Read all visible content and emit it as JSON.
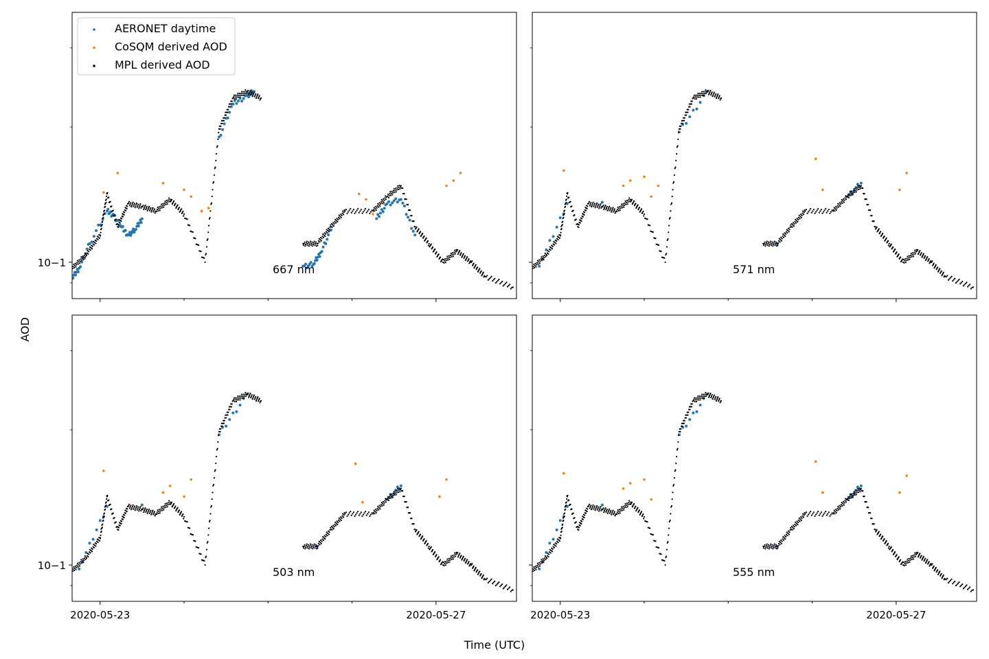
{
  "figure": {
    "ylabel": "AOD",
    "xlabel": "Time (UTC)",
    "colors": {
      "aeronet": "#1f77b4",
      "cosqm": "#ff7f0e",
      "mpl": "#000000"
    },
    "legend": {
      "placement": "upper-left of top-left panel",
      "entries": [
        "AERONET daytime",
        "CoSQM derived AOD",
        "MPL derived AOD"
      ]
    }
  },
  "chart_data": [
    {
      "type": "scatter",
      "panel": "top-left",
      "annotation": "667 nm",
      "yscale": "log",
      "xlim": [
        "2020-05-22 16:00",
        "2020-05-27 23:00"
      ],
      "ylim": [
        0.083,
        0.36
      ],
      "y_tick_label": "10−1",
      "x_tick_labels": [],
      "series": [
        {
          "name": "AERONET daytime",
          "points": [
            [
              "2020-05-22 16:00",
              0.092
            ],
            [
              "2020-05-22 18:00",
              0.097
            ],
            [
              "2020-05-22 21:00",
              0.11
            ],
            [
              "2020-05-23 02:00",
              0.13
            ],
            [
              "2020-05-23 04:00",
              0.127
            ],
            [
              "2020-05-23 06:00",
              0.12
            ],
            [
              "2020-05-23 08:00",
              0.115
            ],
            [
              "2020-05-23 10:00",
              0.118
            ],
            [
              "2020-05-23 12:00",
              0.125
            ],
            [
              "2020-05-24 10:00",
              0.19
            ],
            [
              "2020-05-24 14:00",
              0.225
            ],
            [
              "2020-05-24 18:00",
              0.235
            ],
            [
              "2020-05-24 20:00",
              0.24
            ],
            [
              "2020-05-25 10:00",
              0.098
            ],
            [
              "2020-05-25 13:00",
              0.099
            ],
            [
              "2020-05-25 15:00",
              0.105
            ],
            [
              "2020-05-25 18:00",
              0.118
            ],
            [
              "2020-05-26 07:00",
              0.125
            ],
            [
              "2020-05-26 10:00",
              0.135
            ],
            [
              "2020-05-26 14:00",
              0.138
            ],
            [
              "2020-05-26 18:00",
              0.115
            ]
          ]
        },
        {
          "name": "CoSQM derived AOD",
          "points": [
            [
              "2020-05-23 01:00",
              0.143
            ],
            [
              "2020-05-23 05:00",
              0.158
            ],
            [
              "2020-05-23 18:00",
              0.15
            ],
            [
              "2020-05-24 00:00",
              0.145
            ],
            [
              "2020-05-24 02:00",
              0.14
            ],
            [
              "2020-05-24 05:00",
              0.13
            ],
            [
              "2020-05-24 07:00",
              0.132
            ],
            [
              "2020-05-26 02:00",
              0.142
            ],
            [
              "2020-05-26 04:00",
              0.138
            ],
            [
              "2020-05-26 06:00",
              0.128
            ],
            [
              "2020-05-26 09:00",
              0.135
            ],
            [
              "2020-05-27 03:00",
              0.148
            ],
            [
              "2020-05-27 05:00",
              0.152
            ],
            [
              "2020-05-27 07:00",
              0.158
            ]
          ]
        },
        {
          "name": "MPL derived AOD",
          "points": [
            [
              "2020-05-22 16:00",
              0.097
            ],
            [
              "2020-05-22 20:00",
              0.104
            ],
            [
              "2020-05-23 00:00",
              0.115
            ],
            [
              "2020-05-23 02:00",
              0.142
            ],
            [
              "2020-05-23 05:00",
              0.12
            ],
            [
              "2020-05-23 08:00",
              0.135
            ],
            [
              "2020-05-23 12:00",
              0.133
            ],
            [
              "2020-05-23 16:00",
              0.13
            ],
            [
              "2020-05-23 20:00",
              0.138
            ],
            [
              "2020-05-24 00:00",
              0.128
            ],
            [
              "2020-05-24 06:00",
              0.1
            ],
            [
              "2020-05-24 10:00",
              0.198
            ],
            [
              "2020-05-24 14:00",
              0.232
            ],
            [
              "2020-05-24 18:00",
              0.24
            ],
            [
              "2020-05-24 22:00",
              0.232
            ],
            [
              "2020-05-25 10:00",
              0.11
            ],
            [
              "2020-05-25 14:00",
              0.11
            ],
            [
              "2020-05-25 18:00",
              0.12
            ],
            [
              "2020-05-25 22:00",
              0.13
            ],
            [
              "2020-05-26 06:00",
              0.13
            ],
            [
              "2020-05-26 10:00",
              0.14
            ],
            [
              "2020-05-26 14:00",
              0.148
            ],
            [
              "2020-05-26 18:00",
              0.12
            ],
            [
              "2020-05-26 22:00",
              0.11
            ],
            [
              "2020-05-27 02:00",
              0.1
            ],
            [
              "2020-05-27 06:00",
              0.106
            ],
            [
              "2020-05-27 10:00",
              0.1
            ],
            [
              "2020-05-27 14:00",
              0.093
            ],
            [
              "2020-05-27 22:00",
              0.088
            ]
          ]
        }
      ]
    },
    {
      "type": "scatter",
      "panel": "top-right",
      "annotation": "571 nm",
      "yscale": "log",
      "xlim": [
        "2020-05-22 16:00",
        "2020-05-27 23:00"
      ],
      "ylim": [
        0.083,
        0.36
      ],
      "y_tick_label": "",
      "x_tick_labels": [],
      "series": [
        {
          "name": "AERONET daytime",
          "points": [
            [
              "2020-05-22 18:00",
              0.098
            ],
            [
              "2020-05-23 02:00",
              0.135
            ],
            [
              "2020-05-23 12:00",
              0.136
            ],
            [
              "2020-05-24 10:00",
              0.195
            ],
            [
              "2020-05-24 18:00",
              0.24
            ],
            [
              "2020-05-25 14:00",
              0.11
            ],
            [
              "2020-05-26 10:00",
              0.14
            ],
            [
              "2020-05-26 14:00",
              0.15
            ]
          ]
        },
        {
          "name": "CoSQM derived AOD",
          "points": [
            [
              "2020-05-23 01:00",
              0.16
            ],
            [
              "2020-05-23 18:00",
              0.148
            ],
            [
              "2020-05-23 20:00",
              0.152
            ],
            [
              "2020-05-24 00:00",
              0.155
            ],
            [
              "2020-05-24 02:00",
              0.14
            ],
            [
              "2020-05-24 04:00",
              0.148
            ],
            [
              "2020-05-26 01:00",
              0.17
            ],
            [
              "2020-05-26 03:00",
              0.145
            ],
            [
              "2020-05-27 01:00",
              0.145
            ],
            [
              "2020-05-27 03:00",
              0.158
            ]
          ]
        },
        {
          "name": "MPL derived AOD",
          "points": [
            [
              "2020-05-22 16:00",
              0.097
            ],
            [
              "2020-05-22 20:00",
              0.104
            ],
            [
              "2020-05-23 00:00",
              0.115
            ],
            [
              "2020-05-23 02:00",
              0.142
            ],
            [
              "2020-05-23 05:00",
              0.12
            ],
            [
              "2020-05-23 08:00",
              0.135
            ],
            [
              "2020-05-23 12:00",
              0.133
            ],
            [
              "2020-05-23 16:00",
              0.13
            ],
            [
              "2020-05-23 20:00",
              0.138
            ],
            [
              "2020-05-24 00:00",
              0.128
            ],
            [
              "2020-05-24 06:00",
              0.1
            ],
            [
              "2020-05-24 10:00",
              0.198
            ],
            [
              "2020-05-24 14:00",
              0.232
            ],
            [
              "2020-05-24 18:00",
              0.24
            ],
            [
              "2020-05-24 22:00",
              0.232
            ],
            [
              "2020-05-25 10:00",
              0.11
            ],
            [
              "2020-05-25 14:00",
              0.11
            ],
            [
              "2020-05-25 18:00",
              0.12
            ],
            [
              "2020-05-25 22:00",
              0.13
            ],
            [
              "2020-05-26 06:00",
              0.13
            ],
            [
              "2020-05-26 10:00",
              0.14
            ],
            [
              "2020-05-26 14:00",
              0.148
            ],
            [
              "2020-05-26 18:00",
              0.12
            ],
            [
              "2020-05-26 22:00",
              0.11
            ],
            [
              "2020-05-27 02:00",
              0.1
            ],
            [
              "2020-05-27 06:00",
              0.106
            ],
            [
              "2020-05-27 10:00",
              0.1
            ],
            [
              "2020-05-27 14:00",
              0.093
            ],
            [
              "2020-05-27 22:00",
              0.088
            ]
          ]
        }
      ]
    },
    {
      "type": "scatter",
      "panel": "bottom-left",
      "annotation": "503 nm",
      "yscale": "log",
      "xlim": [
        "2020-05-22 16:00",
        "2020-05-27 23:00"
      ],
      "ylim": [
        0.083,
        0.36
      ],
      "y_tick_label": "10−1",
      "x_tick_labels": [
        "2020-05-23",
        "2020-05-27"
      ],
      "series": [
        {
          "name": "AERONET daytime",
          "points": [
            [
              "2020-05-22 18:00",
              0.098
            ],
            [
              "2020-05-23 02:00",
              0.135
            ],
            [
              "2020-05-23 12:00",
              0.136
            ],
            [
              "2020-05-24 10:00",
              0.195
            ],
            [
              "2020-05-24 18:00",
              0.24
            ],
            [
              "2020-05-25 14:00",
              0.11
            ],
            [
              "2020-05-26 10:00",
              0.14
            ],
            [
              "2020-05-26 14:00",
              0.15
            ]
          ]
        },
        {
          "name": "CoSQM derived AOD",
          "points": [
            [
              "2020-05-23 01:00",
              0.162
            ],
            [
              "2020-05-23 18:00",
              0.145
            ],
            [
              "2020-05-23 20:00",
              0.15
            ],
            [
              "2020-05-24 00:00",
              0.142
            ],
            [
              "2020-05-24 02:00",
              0.155
            ],
            [
              "2020-05-26 01:00",
              0.168
            ],
            [
              "2020-05-26 03:00",
              0.138
            ],
            [
              "2020-05-27 01:00",
              0.142
            ],
            [
              "2020-05-27 03:00",
              0.155
            ]
          ]
        },
        {
          "name": "MPL derived AOD",
          "points": [
            [
              "2020-05-22 16:00",
              0.097
            ],
            [
              "2020-05-22 20:00",
              0.104
            ],
            [
              "2020-05-23 00:00",
              0.115
            ],
            [
              "2020-05-23 02:00",
              0.142
            ],
            [
              "2020-05-23 05:00",
              0.12
            ],
            [
              "2020-05-23 08:00",
              0.135
            ],
            [
              "2020-05-23 12:00",
              0.133
            ],
            [
              "2020-05-23 16:00",
              0.13
            ],
            [
              "2020-05-23 20:00",
              0.138
            ],
            [
              "2020-05-24 00:00",
              0.128
            ],
            [
              "2020-05-24 06:00",
              0.1
            ],
            [
              "2020-05-24 10:00",
              0.198
            ],
            [
              "2020-05-24 14:00",
              0.232
            ],
            [
              "2020-05-24 18:00",
              0.24
            ],
            [
              "2020-05-24 22:00",
              0.232
            ],
            [
              "2020-05-25 10:00",
              0.11
            ],
            [
              "2020-05-25 14:00",
              0.11
            ],
            [
              "2020-05-25 18:00",
              0.12
            ],
            [
              "2020-05-25 22:00",
              0.13
            ],
            [
              "2020-05-26 06:00",
              0.13
            ],
            [
              "2020-05-26 10:00",
              0.14
            ],
            [
              "2020-05-26 14:00",
              0.148
            ],
            [
              "2020-05-26 18:00",
              0.12
            ],
            [
              "2020-05-26 22:00",
              0.11
            ],
            [
              "2020-05-27 02:00",
              0.1
            ],
            [
              "2020-05-27 06:00",
              0.106
            ],
            [
              "2020-05-27 10:00",
              0.1
            ],
            [
              "2020-05-27 14:00",
              0.093
            ],
            [
              "2020-05-27 22:00",
              0.088
            ]
          ]
        }
      ]
    },
    {
      "type": "scatter",
      "panel": "bottom-right",
      "annotation": "555 nm",
      "yscale": "log",
      "xlim": [
        "2020-05-22 16:00",
        "2020-05-27 23:00"
      ],
      "ylim": [
        0.083,
        0.36
      ],
      "y_tick_label": "",
      "x_tick_labels": [
        "2020-05-23",
        "2020-05-27"
      ],
      "series": [
        {
          "name": "AERONET daytime",
          "points": [
            [
              "2020-05-22 18:00",
              0.098
            ],
            [
              "2020-05-23 02:00",
              0.135
            ],
            [
              "2020-05-23 12:00",
              0.136
            ],
            [
              "2020-05-24 10:00",
              0.195
            ],
            [
              "2020-05-24 18:00",
              0.24
            ],
            [
              "2020-05-25 14:00",
              0.11
            ],
            [
              "2020-05-26 10:00",
              0.14
            ],
            [
              "2020-05-26 14:00",
              0.15
            ]
          ]
        },
        {
          "name": "CoSQM derived AOD",
          "points": [
            [
              "2020-05-23 01:00",
              0.16
            ],
            [
              "2020-05-23 18:00",
              0.148
            ],
            [
              "2020-05-23 20:00",
              0.152
            ],
            [
              "2020-05-24 00:00",
              0.155
            ],
            [
              "2020-05-24 02:00",
              0.14
            ],
            [
              "2020-05-26 01:00",
              0.17
            ],
            [
              "2020-05-26 03:00",
              0.145
            ],
            [
              "2020-05-27 01:00",
              0.145
            ],
            [
              "2020-05-27 03:00",
              0.158
            ]
          ]
        },
        {
          "name": "MPL derived AOD",
          "points": [
            [
              "2020-05-22 16:00",
              0.097
            ],
            [
              "2020-05-22 20:00",
              0.104
            ],
            [
              "2020-05-23 00:00",
              0.115
            ],
            [
              "2020-05-23 02:00",
              0.142
            ],
            [
              "2020-05-23 05:00",
              0.12
            ],
            [
              "2020-05-23 08:00",
              0.135
            ],
            [
              "2020-05-23 12:00",
              0.133
            ],
            [
              "2020-05-23 16:00",
              0.13
            ],
            [
              "2020-05-23 20:00",
              0.138
            ],
            [
              "2020-05-24 00:00",
              0.128
            ],
            [
              "2020-05-24 06:00",
              0.1
            ],
            [
              "2020-05-24 10:00",
              0.198
            ],
            [
              "2020-05-24 14:00",
              0.232
            ],
            [
              "2020-05-24 18:00",
              0.24
            ],
            [
              "2020-05-24 22:00",
              0.232
            ],
            [
              "2020-05-25 10:00",
              0.11
            ],
            [
              "2020-05-25 14:00",
              0.11
            ],
            [
              "2020-05-25 18:00",
              0.12
            ],
            [
              "2020-05-25 22:00",
              0.13
            ],
            [
              "2020-05-26 06:00",
              0.13
            ],
            [
              "2020-05-26 10:00",
              0.14
            ],
            [
              "2020-05-26 14:00",
              0.148
            ],
            [
              "2020-05-26 18:00",
              0.12
            ],
            [
              "2020-05-26 22:00",
              0.11
            ],
            [
              "2020-05-27 02:00",
              0.1
            ],
            [
              "2020-05-27 06:00",
              0.106
            ],
            [
              "2020-05-27 10:00",
              0.1
            ],
            [
              "2020-05-27 14:00",
              0.093
            ],
            [
              "2020-05-27 22:00",
              0.088
            ]
          ]
        }
      ]
    }
  ]
}
